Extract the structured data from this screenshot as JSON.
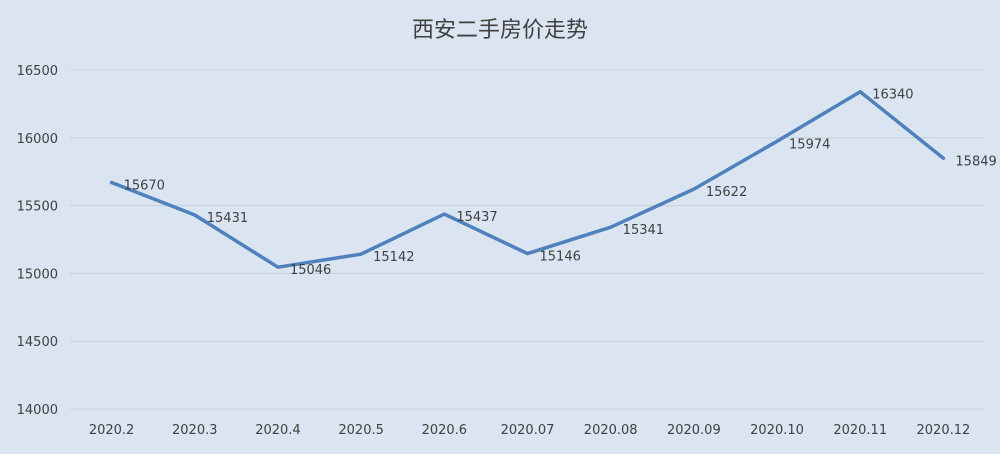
{
  "chart_data": {
    "type": "line",
    "title": "西安二手房价走势",
    "categories": [
      "2020.2",
      "2020.3",
      "2020.4",
      "2020.5",
      "2020.6",
      "2020.07",
      "2020.08",
      "2020.09",
      "2020.10",
      "2020.11",
      "2020.12"
    ],
    "series": [
      {
        "values": [
          15670,
          15431,
          15046,
          15142,
          15437,
          15146,
          15341,
          15622,
          15974,
          16340,
          15849
        ]
      }
    ],
    "y_ticks": [
      "14000",
      "14500",
      "15000",
      "15500",
      "16000",
      "16500"
    ],
    "ylim": [
      14000,
      16500
    ],
    "grid": true,
    "legend": "none",
    "data_labels": true,
    "colors": {
      "line": "#4f81bd",
      "background": "#dbe5f1",
      "grid": "#c8d2de",
      "text": "#404040"
    }
  }
}
